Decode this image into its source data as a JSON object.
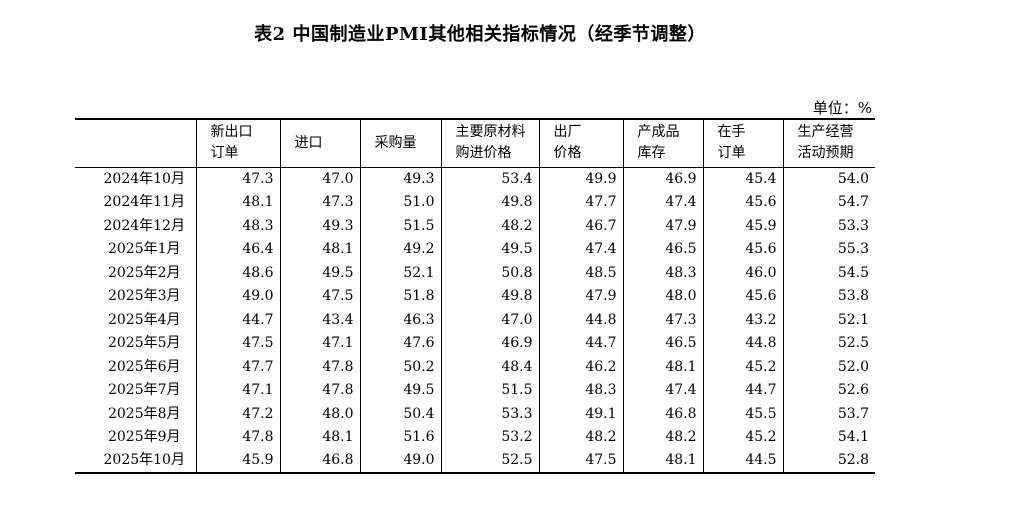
{
  "title": "表2 中国制造业PMI其他相关指标情况（经季节调整）",
  "unit": "单位：%",
  "columns": [
    "新出口\n订单",
    "进口",
    "采购量",
    "主要原材料\n购进价格",
    "出厂\n价格",
    "产成品\n库存",
    "在手\n订单",
    "生产经营\n活动预期"
  ],
  "rows": [
    {
      "month": "2024年10月",
      "values": [
        "47.3",
        "47.0",
        "49.3",
        "53.4",
        "49.9",
        "46.9",
        "45.4",
        "54.0"
      ]
    },
    {
      "month": "2024年11月",
      "values": [
        "48.1",
        "47.3",
        "51.0",
        "49.8",
        "47.7",
        "47.4",
        "45.6",
        "54.7"
      ]
    },
    {
      "month": "2024年12月",
      "values": [
        "48.3",
        "49.3",
        "51.5",
        "48.2",
        "46.7",
        "47.9",
        "45.9",
        "53.3"
      ]
    },
    {
      "month": "2025年1月",
      "values": [
        "46.4",
        "48.1",
        "49.2",
        "49.5",
        "47.4",
        "46.5",
        "45.6",
        "55.3"
      ]
    },
    {
      "month": "2025年2月",
      "values": [
        "48.6",
        "49.5",
        "52.1",
        "50.8",
        "48.5",
        "48.3",
        "46.0",
        "54.5"
      ]
    },
    {
      "month": "2025年3月",
      "values": [
        "49.0",
        "47.5",
        "51.8",
        "49.8",
        "47.9",
        "48.0",
        "45.6",
        "53.8"
      ]
    },
    {
      "month": "2025年4月",
      "values": [
        "44.7",
        "43.4",
        "46.3",
        "47.0",
        "44.8",
        "47.3",
        "43.2",
        "52.1"
      ]
    },
    {
      "month": "2025年5月",
      "values": [
        "47.5",
        "47.1",
        "47.6",
        "46.9",
        "44.7",
        "46.5",
        "44.8",
        "52.5"
      ]
    },
    {
      "month": "2025年6月",
      "values": [
        "47.7",
        "47.8",
        "50.2",
        "48.4",
        "46.2",
        "48.1",
        "45.2",
        "52.0"
      ]
    },
    {
      "month": "2025年7月",
      "values": [
        "47.1",
        "47.8",
        "49.5",
        "51.5",
        "48.3",
        "47.4",
        "44.7",
        "52.6"
      ]
    },
    {
      "month": "2025年8月",
      "values": [
        "47.2",
        "48.0",
        "50.4",
        "53.3",
        "49.1",
        "46.8",
        "45.5",
        "53.7"
      ]
    },
    {
      "month": "2025年9月",
      "values": [
        "47.8",
        "48.1",
        "51.6",
        "53.2",
        "48.2",
        "48.2",
        "45.2",
        "54.1"
      ]
    },
    {
      "month": "2025年10月",
      "values": [
        "45.9",
        "46.8",
        "49.0",
        "52.5",
        "47.5",
        "48.1",
        "44.5",
        "52.8"
      ]
    }
  ]
}
